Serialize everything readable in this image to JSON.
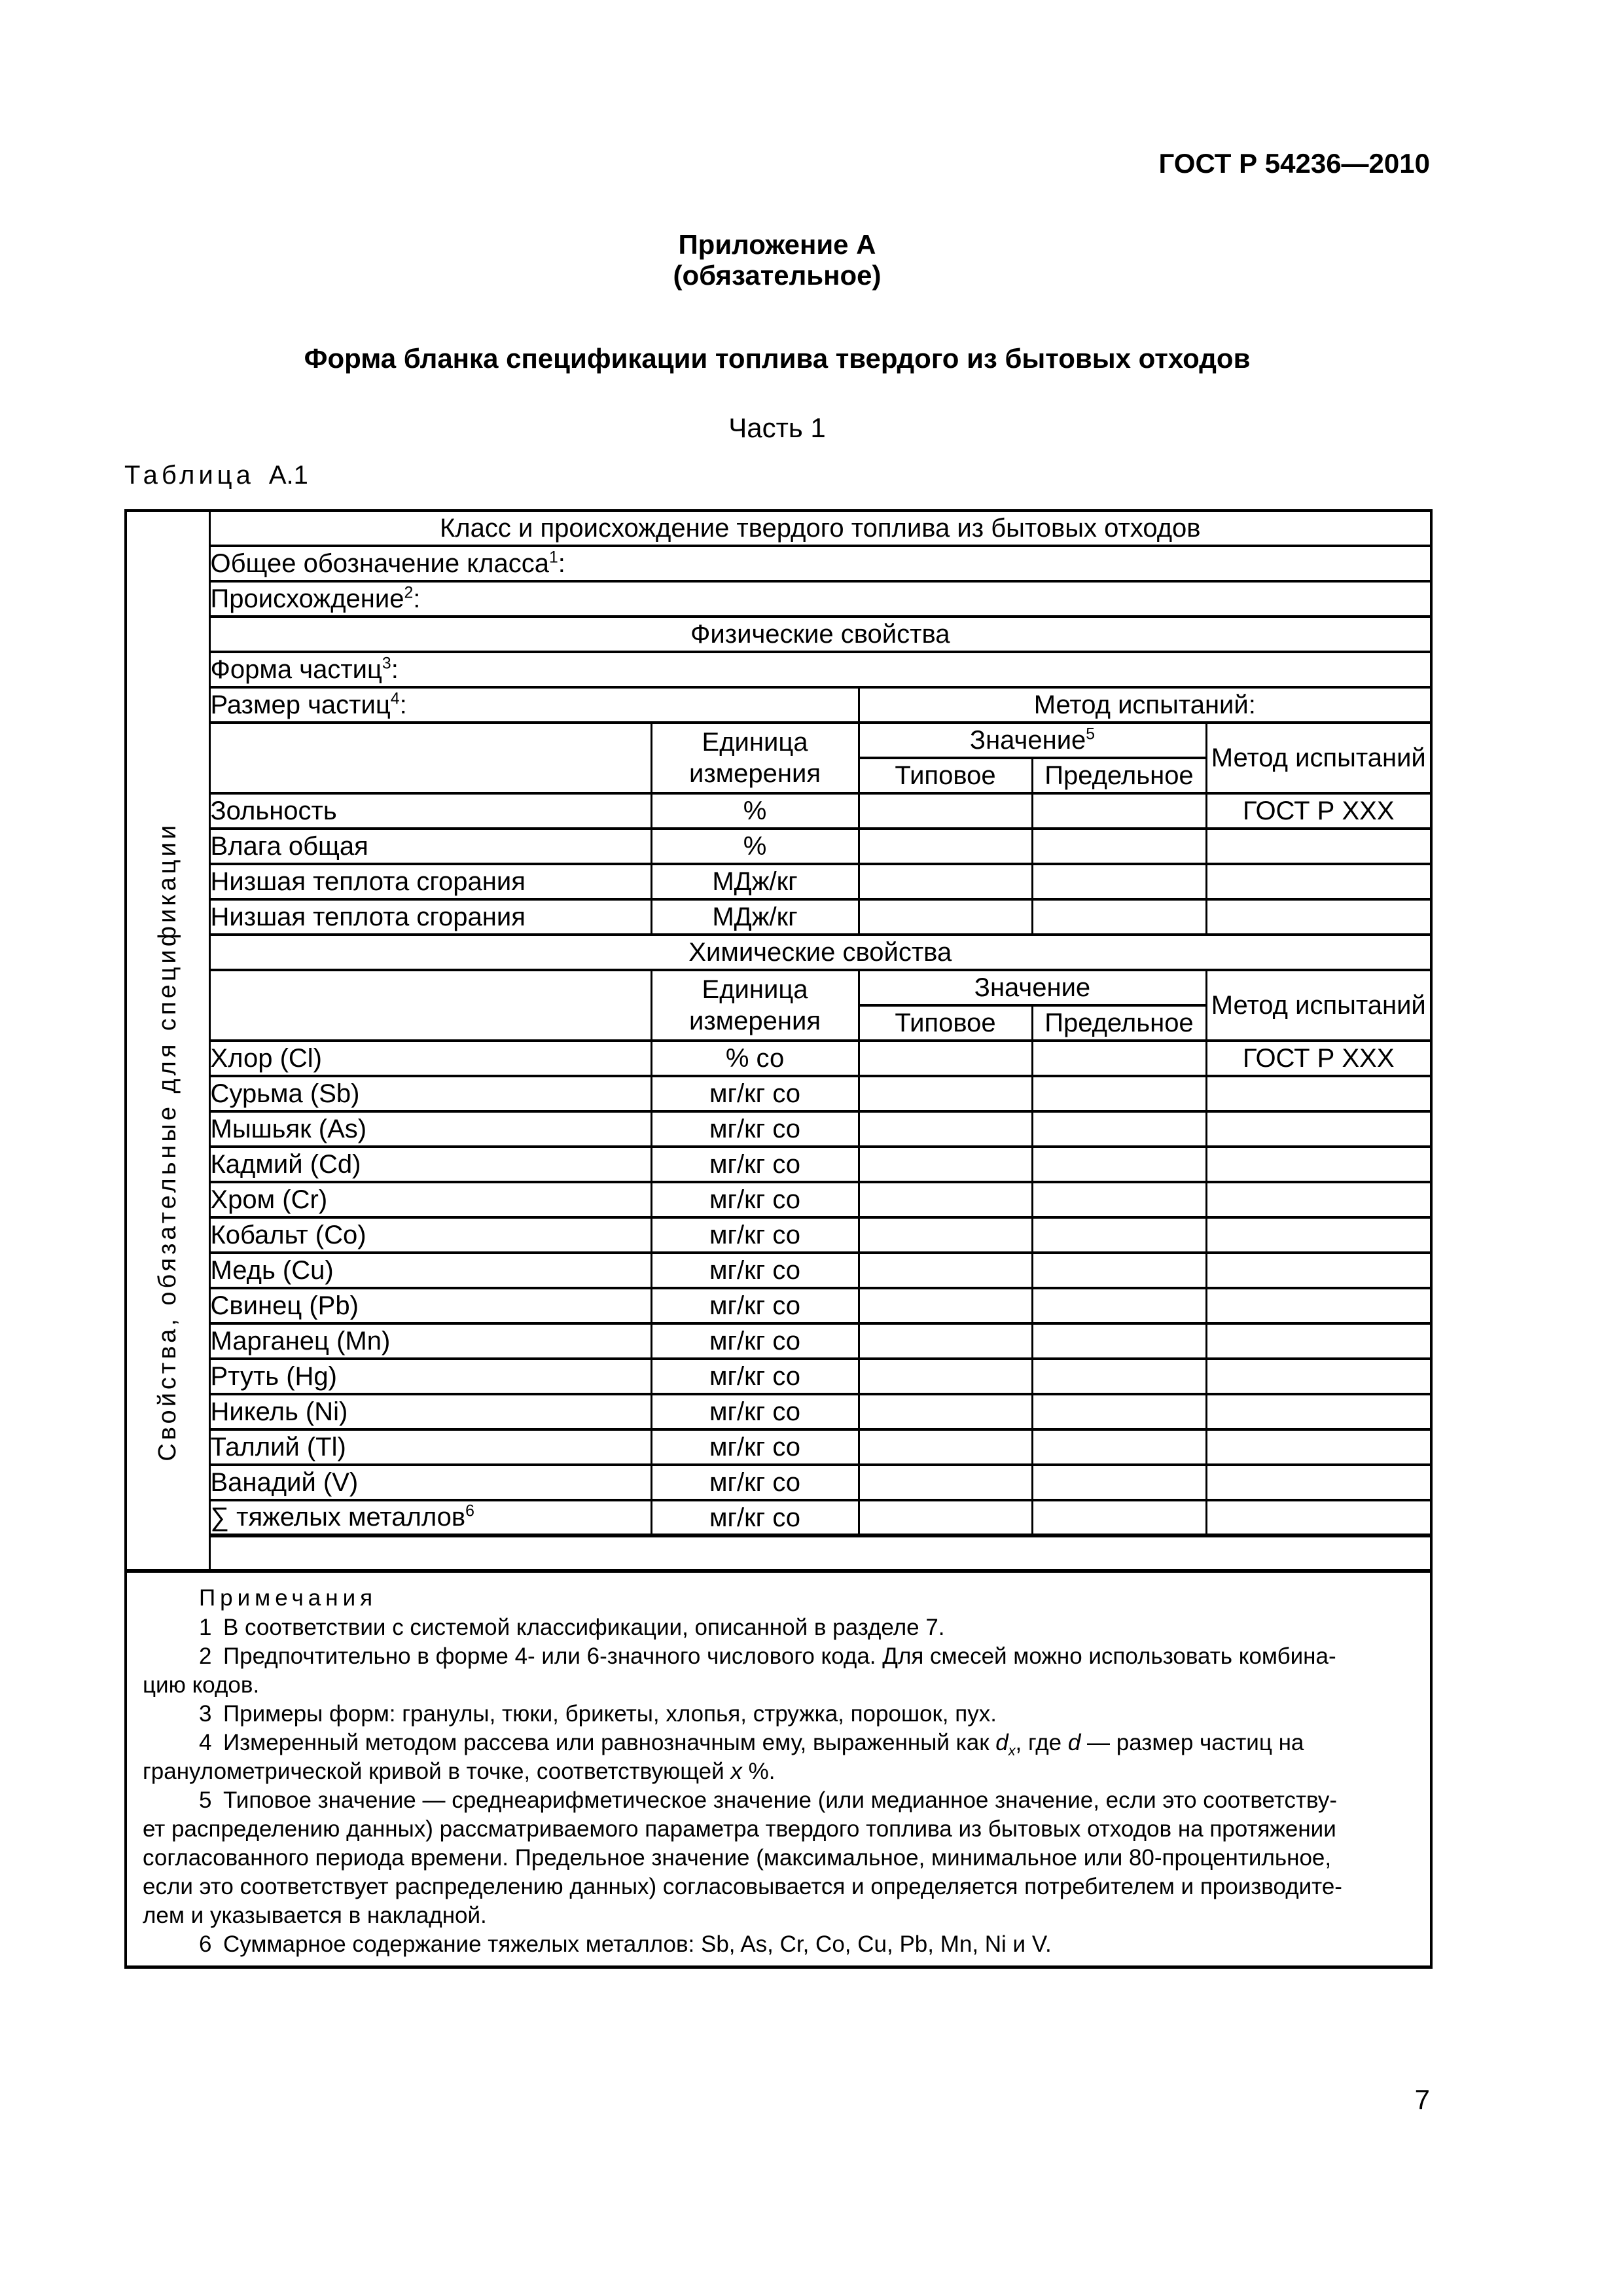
{
  "colors": {
    "text": "#000000",
    "background": "#ffffff",
    "border": "#000000"
  },
  "header": {
    "doc_number": "ГОСТ Р 54236—2010",
    "appendix": "Приложение А",
    "appendix_note": "(обязательное)",
    "title": "Форма бланка спецификации топлива твердого из бытовых отходов",
    "part": "Часть 1"
  },
  "table": {
    "caption": {
      "label": "Таблица",
      "number": "А.1"
    },
    "side_label": "Свойства, обязательные для спецификации",
    "rows": {
      "class_origin": "Класс и происхождение твердого топлива из бытовых отходов",
      "class_code": [
        [
          "",
          "Общее обозначение класса"
        ],
        [
          "sup",
          "1"
        ],
        [
          "",
          ":"
        ]
      ],
      "origin": [
        [
          "",
          "Происхождение"
        ],
        [
          "sup",
          "2"
        ],
        [
          "",
          ":"
        ]
      ],
      "physical_section": "Физические свойства",
      "particle_form": [
        [
          "",
          "Форма частиц"
        ],
        [
          "sup",
          "3"
        ],
        [
          "",
          ":"
        ]
      ],
      "particle_size": [
        [
          "",
          "Размер частиц"
        ],
        [
          "sup",
          "4"
        ],
        [
          "",
          ":"
        ]
      ],
      "test_method_label": "Метод испытаний:",
      "chemical_section": "Химические свойства"
    },
    "header": {
      "unit": "Единица измерения",
      "value_with_sup": [
        [
          "",
          "Значение"
        ],
        [
          "sup",
          "5"
        ]
      ],
      "value": "Значение",
      "typical": "Типовое",
      "limit": "Предельное",
      "method": "Метод испытаний"
    },
    "physical_rows": [
      {
        "name": [
          [
            "",
            "Зольность"
          ]
        ],
        "unit": "%",
        "typical": "",
        "limit": "",
        "method": "ГОСТ Р ХХХ"
      },
      {
        "name": [
          [
            "",
            "Влага общая"
          ]
        ],
        "unit": "%",
        "typical": "",
        "limit": "",
        "method": ""
      },
      {
        "name": [
          [
            "",
            "Низшая теплота сгорания"
          ]
        ],
        "unit": "МДж/кг",
        "typical": "",
        "limit": "",
        "method": ""
      },
      {
        "name": [
          [
            "",
            "Низшая теплота сгорания"
          ]
        ],
        "unit": "МДж/кг",
        "typical": "",
        "limit": "",
        "method": ""
      }
    ],
    "chemical_rows": [
      {
        "name": [
          [
            "",
            "Хлор (Cl)"
          ]
        ],
        "unit": "% со",
        "typical": "",
        "limit": "",
        "method": "ГОСТ Р ХХХ"
      },
      {
        "name": [
          [
            "",
            "Сурьма (Sb)"
          ]
        ],
        "unit": "мг/кг со",
        "typical": "",
        "limit": "",
        "method": ""
      },
      {
        "name": [
          [
            "",
            "Мышьяк (As)"
          ]
        ],
        "unit": "мг/кг со",
        "typical": "",
        "limit": "",
        "method": ""
      },
      {
        "name": [
          [
            "",
            "Кадмий (Cd)"
          ]
        ],
        "unit": "мг/кг со",
        "typical": "",
        "limit": "",
        "method": ""
      },
      {
        "name": [
          [
            "",
            "Хром (Cr)"
          ]
        ],
        "unit": "мг/кг со",
        "typical": "",
        "limit": "",
        "method": ""
      },
      {
        "name": [
          [
            "",
            "Кобальт (Co)"
          ]
        ],
        "unit": "мг/кг со",
        "typical": "",
        "limit": "",
        "method": ""
      },
      {
        "name": [
          [
            "",
            "Медь (Cu)"
          ]
        ],
        "unit": "мг/кг со",
        "typical": "",
        "limit": "",
        "method": ""
      },
      {
        "name": [
          [
            "",
            "Свинец (Pb)"
          ]
        ],
        "unit": "мг/кг со",
        "typical": "",
        "limit": "",
        "method": ""
      },
      {
        "name": [
          [
            "",
            "Марганец (Mn)"
          ]
        ],
        "unit": "мг/кг со",
        "typical": "",
        "limit": "",
        "method": ""
      },
      {
        "name": [
          [
            "",
            "Ртуть (Hg)"
          ]
        ],
        "unit": "мг/кг со",
        "typical": "",
        "limit": "",
        "method": ""
      },
      {
        "name": [
          [
            "",
            "Никель (Ni)"
          ]
        ],
        "unit": "мг/кг со",
        "typical": "",
        "limit": "",
        "method": ""
      },
      {
        "name": [
          [
            "",
            "Таллий (Tl)"
          ]
        ],
        "unit": "мг/кг со",
        "typical": "",
        "limit": "",
        "method": ""
      },
      {
        "name": [
          [
            "",
            "Ванадий (V)"
          ]
        ],
        "unit": "мг/кг со",
        "typical": "",
        "limit": "",
        "method": ""
      },
      {
        "name": [
          [
            "",
            "∑ тяжелых металлов"
          ],
          [
            "sup",
            "6"
          ]
        ],
        "unit": "мг/кг со",
        "typical": "",
        "limit": "",
        "method": "",
        "cls": "sum"
      }
    ]
  },
  "notes": {
    "heading": "Примечания",
    "items": [
      [
        [
          [
            "",
            "1 В соответствии с системой классификации, описанной в разделе 7."
          ]
        ]
      ],
      [
        [
          [
            "",
            "2 Предпочтительно в форме 4- или 6-значного числового кода. Для смесей можно использовать комбина-"
          ]
        ],
        [
          [
            "",
            "цию кодов."
          ]
        ]
      ],
      [
        [
          [
            "",
            "3 Примеры форм: гранулы, тюки, брикеты, хлопья, стружка, порошок, пух."
          ]
        ]
      ],
      [
        [
          [
            "",
            "4 Измеренный методом рассева или равнозначным ему, выраженный как "
          ],
          [
            "i",
            "d"
          ],
          [
            "isub",
            "x"
          ],
          [
            "",
            ", где "
          ],
          [
            "i",
            "d"
          ],
          [
            "",
            " — размер частиц на"
          ]
        ],
        [
          [
            "",
            "гранулометрической кривой в точке, соответствующей "
          ],
          [
            "i",
            "x"
          ],
          [
            "",
            " %."
          ]
        ]
      ],
      [
        [
          [
            "",
            "5 Типовое значение — среднеарифметическое значение (или медианное значение, если это соответству-"
          ]
        ],
        [
          [
            "",
            "ет распределению данных) рассматриваемого параметра твердого топлива из бытовых отходов на протяжении"
          ]
        ],
        [
          [
            "",
            "согласованного периода времени. Предельное значение (максимальное, минимальное или 80-процентильное,"
          ]
        ],
        [
          [
            "",
            "если это соответствует распределению данных) согласовывается и определяется потребителем и производите-"
          ]
        ],
        [
          [
            "",
            "лем и указывается в накладной."
          ]
        ]
      ],
      [
        [
          [
            "",
            "6 Суммарное содержание тяжелых металлов: Sb, As, Cr, Co, Cu, Pb, Mn, Ni и V."
          ]
        ]
      ]
    ]
  },
  "footer": {
    "page_number": "7"
  }
}
